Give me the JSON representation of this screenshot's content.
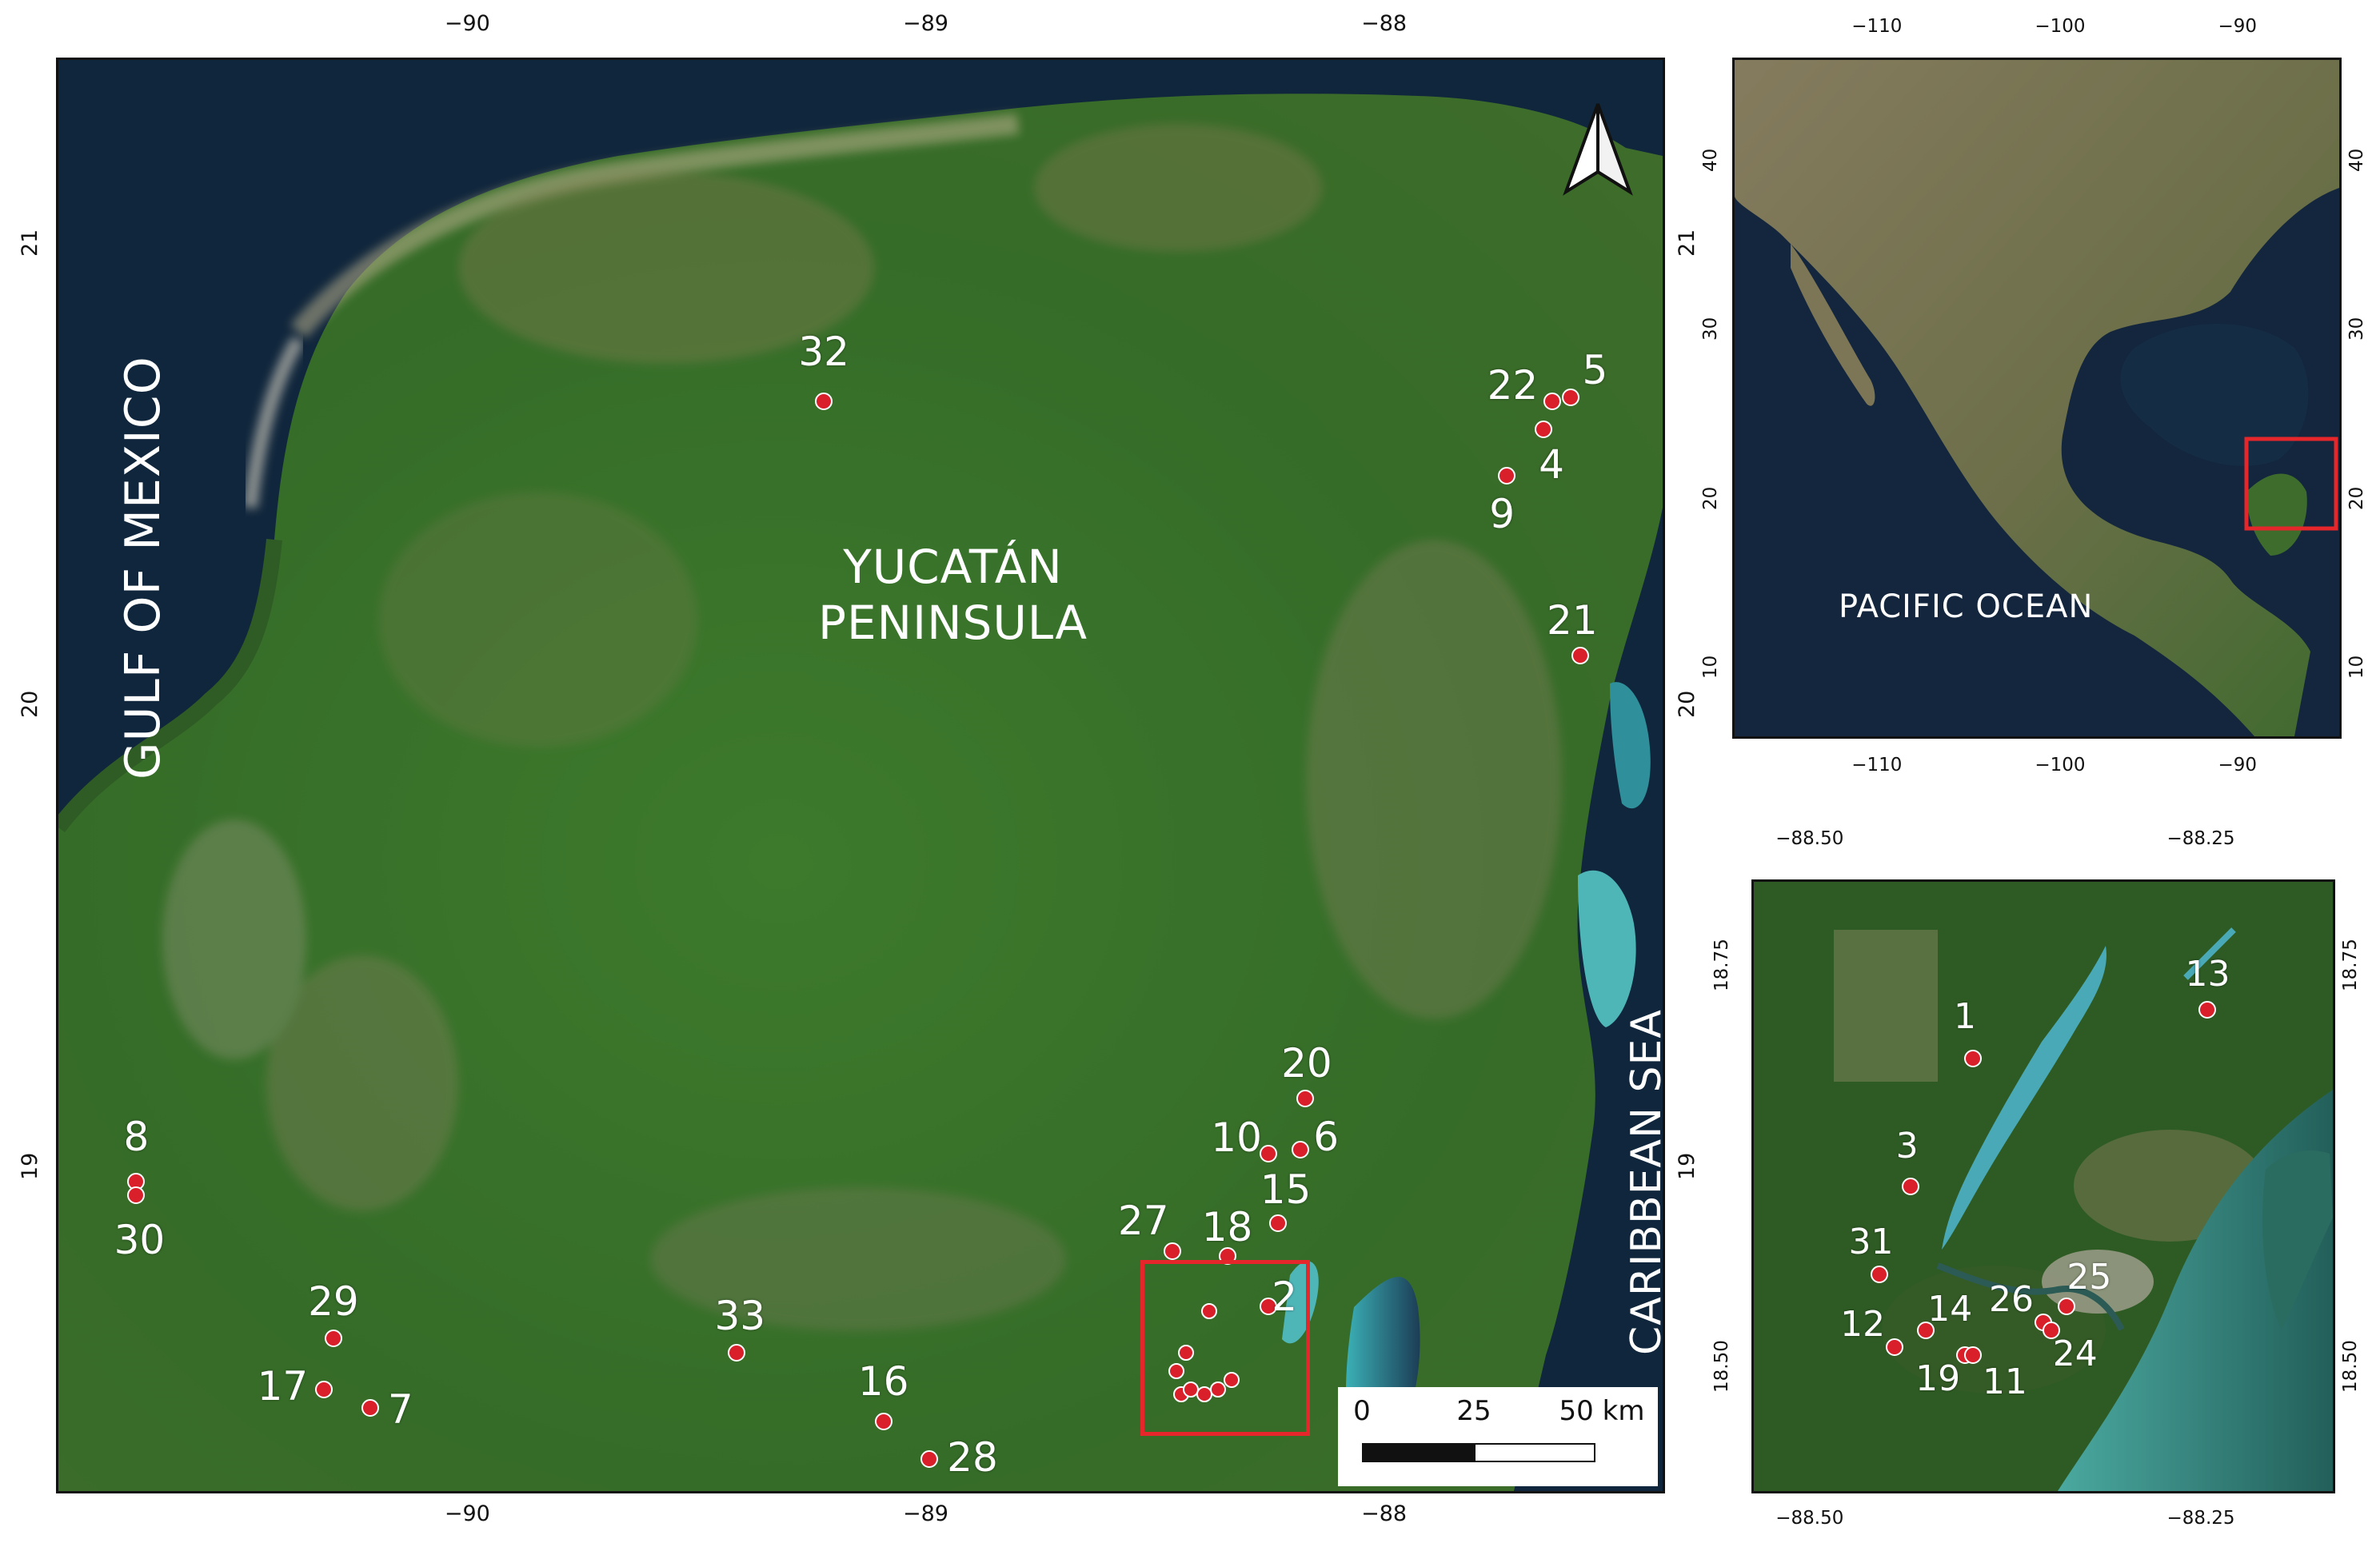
{
  "main_map": {
    "title": "YUCATÁN PENINSULA",
    "title_lines": [
      "YUCATÁN",
      "PENINSULA"
    ],
    "water_labels": {
      "gulf": "GULF OF MEXICO",
      "caribbean": "CARIBBEAN SEA"
    },
    "lon_ticks": [
      "−90",
      "−89",
      "−88"
    ],
    "lat_ticks": [
      "21",
      "20",
      "19"
    ],
    "north_arrow": "north-arrow-icon",
    "scale_bar": {
      "labels": [
        "0",
        "25",
        "50 km"
      ],
      "unit": "km"
    },
    "sites": [
      {
        "id": "32",
        "lon": -89.23,
        "lat": 20.66
      },
      {
        "id": "22",
        "lon": -87.64,
        "lat": 20.66
      },
      {
        "id": "5",
        "lon": -87.6,
        "lat": 20.67
      },
      {
        "id": "4",
        "lon": -87.66,
        "lat": 20.6
      },
      {
        "id": "9",
        "lon": -87.74,
        "lat": 20.5
      },
      {
        "id": "21",
        "lon": -87.58,
        "lat": 20.11
      },
      {
        "id": "20",
        "lon": -88.18,
        "lat": 19.15
      },
      {
        "id": "10",
        "lon": -88.26,
        "lat": 19.03
      },
      {
        "id": "6",
        "lon": -88.19,
        "lat": 19.04
      },
      {
        "id": "15",
        "lon": -88.24,
        "lat": 18.88
      },
      {
        "id": "18",
        "lon": -88.35,
        "lat": 18.81
      },
      {
        "id": "27",
        "lon": -88.47,
        "lat": 18.82
      },
      {
        "id": "2",
        "lon": -88.26,
        "lat": 18.7
      },
      {
        "id": "8",
        "lon": -90.73,
        "lat": 18.97
      },
      {
        "id": "30",
        "lon": -90.73,
        "lat": 18.94
      },
      {
        "id": "29",
        "lon": -90.3,
        "lat": 18.63
      },
      {
        "id": "17",
        "lon": -90.32,
        "lat": 18.52
      },
      {
        "id": "7",
        "lon": -90.22,
        "lat": 18.48
      },
      {
        "id": "33",
        "lon": -89.42,
        "lat": 18.6
      },
      {
        "id": "16",
        "lon": -89.1,
        "lat": 18.45
      },
      {
        "id": "28",
        "lon": -89.0,
        "lat": 18.37
      }
    ],
    "inset_cluster": [
      {
        "lon": -88.39,
        "lat": 18.69
      },
      {
        "lon": -88.44,
        "lat": 18.6
      },
      {
        "lon": -88.46,
        "lat": 18.56
      },
      {
        "lon": -88.45,
        "lat": 18.51
      },
      {
        "lon": -88.43,
        "lat": 18.52
      },
      {
        "lon": -88.4,
        "lat": 18.51
      },
      {
        "lon": -88.37,
        "lat": 18.52
      },
      {
        "lon": -88.34,
        "lat": 18.54
      }
    ],
    "highlight_box_color": "#e5262b",
    "marker_color": "#d91f2a"
  },
  "overview_map": {
    "lon_ticks": [
      "−110",
      "−100",
      "−90"
    ],
    "lat_ticks": [
      "40",
      "30",
      "20",
      "10"
    ],
    "ocean_label": "PACIFIC OCEAN",
    "highlight_box_color": "#e5262b"
  },
  "detail_map": {
    "lon_ticks": [
      "−88.50",
      "−88.25"
    ],
    "lat_ticks": [
      "18.75",
      "18.50"
    ],
    "sites": [
      {
        "id": "1",
        "lon": -88.4,
        "lat": 18.69
      },
      {
        "id": "13",
        "lon": -88.25,
        "lat": 18.72
      },
      {
        "id": "3",
        "lon": -88.44,
        "lat": 18.61
      },
      {
        "id": "31",
        "lon": -88.46,
        "lat": 18.555
      },
      {
        "id": "12",
        "lon": -88.45,
        "lat": 18.51
      },
      {
        "id": "14",
        "lon": -88.43,
        "lat": 18.52
      },
      {
        "id": "19",
        "lon": -88.405,
        "lat": 18.505
      },
      {
        "id": "11",
        "lon": -88.4,
        "lat": 18.505
      },
      {
        "id": "26",
        "lon": -88.355,
        "lat": 18.525
      },
      {
        "id": "25",
        "lon": -88.34,
        "lat": 18.535
      },
      {
        "id": "24",
        "lon": -88.35,
        "lat": 18.52
      }
    ],
    "marker_color": "#d91f2a"
  }
}
